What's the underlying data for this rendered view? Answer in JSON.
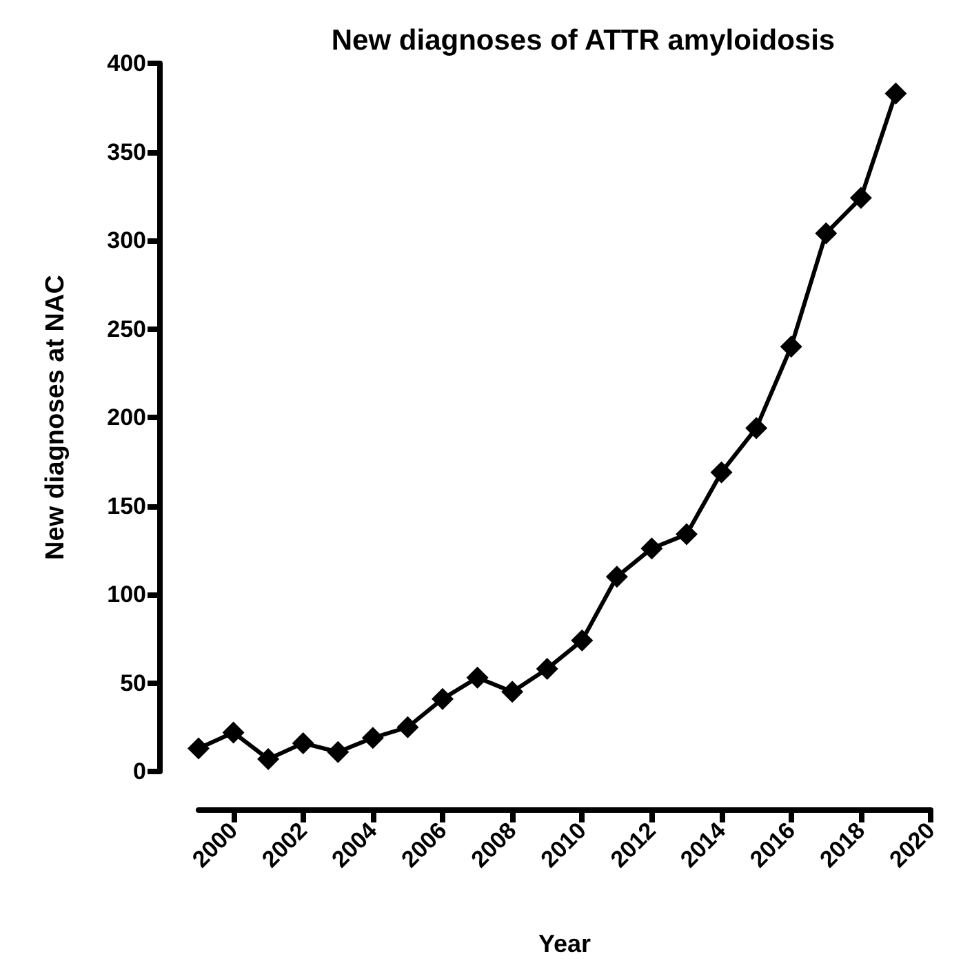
{
  "chart_data": {
    "type": "line",
    "title": "New diagnoses of ATTR amyloidosis",
    "xlabel": "Year",
    "ylabel": "New diagnoses at NAC",
    "x": [
      1999,
      2000,
      2001,
      2002,
      2003,
      2004,
      2005,
      2006,
      2007,
      2008,
      2009,
      2010,
      2011,
      2012,
      2013,
      2014,
      2015,
      2016,
      2017,
      2018,
      2019
    ],
    "series": [
      {
        "color": "#000000",
        "values": [
          13,
          22,
          7,
          16,
          11,
          19,
          25,
          41,
          53,
          45,
          58,
          74,
          110,
          126,
          134,
          169,
          194,
          240,
          304,
          324,
          383
        ]
      }
    ],
    "xlim": [
      1999,
      2020
    ],
    "xticks": [
      2000,
      2002,
      2004,
      2006,
      2008,
      2010,
      2012,
      2014,
      2016,
      2018,
      2020
    ],
    "ylim": [
      0,
      400
    ],
    "yticks": [
      0,
      50,
      100,
      150,
      200,
      250,
      300,
      350,
      400
    ],
    "marker": "diamond",
    "line_style": "solid",
    "grid": false
  }
}
